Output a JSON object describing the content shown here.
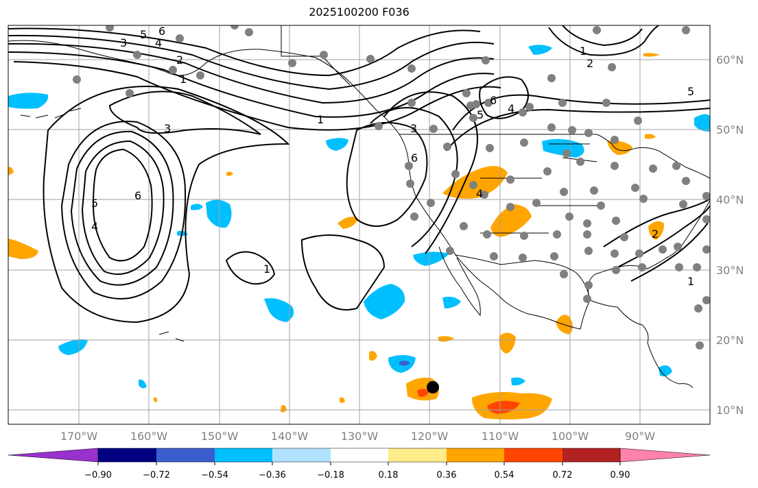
{
  "title": "2025100200 F036",
  "colors": {
    "land_outline": "#000000",
    "grid": "#a0a0a0",
    "station": "#808080",
    "marker": "#000000",
    "contour": "#000000"
  },
  "colorbar": {
    "colors": [
      "#9932cc",
      "#000080",
      "#3a5fcd",
      "#00bfff",
      "#b0e2ff",
      "#ffffff",
      "#ffec8b",
      "#ffa500",
      "#ff4500",
      "#b22222",
      "#ff82ab"
    ],
    "tick_labels": [
      "−0.90",
      "−0.72",
      "−0.54",
      "−0.36",
      "−0.18",
      "0.18",
      "0.36",
      "0.54",
      "0.72",
      "0.90"
    ]
  },
  "lat_labels": [
    "60°N",
    "50°N",
    "40°N",
    "30°N",
    "20°N",
    "10°N"
  ],
  "lon_labels": [
    "170°W",
    "160°W",
    "150°W",
    "140°W",
    "130°W",
    "120°W",
    "110°W",
    "100°W",
    "90°W"
  ],
  "contour_labels": [
    "6",
    "5",
    "4",
    "3",
    "2",
    "1",
    "3",
    "5",
    "4",
    "6",
    "1",
    "3",
    "6",
    "5",
    "4",
    "1",
    "2",
    "5",
    "6",
    "4",
    "1",
    "1",
    "2"
  ]
}
